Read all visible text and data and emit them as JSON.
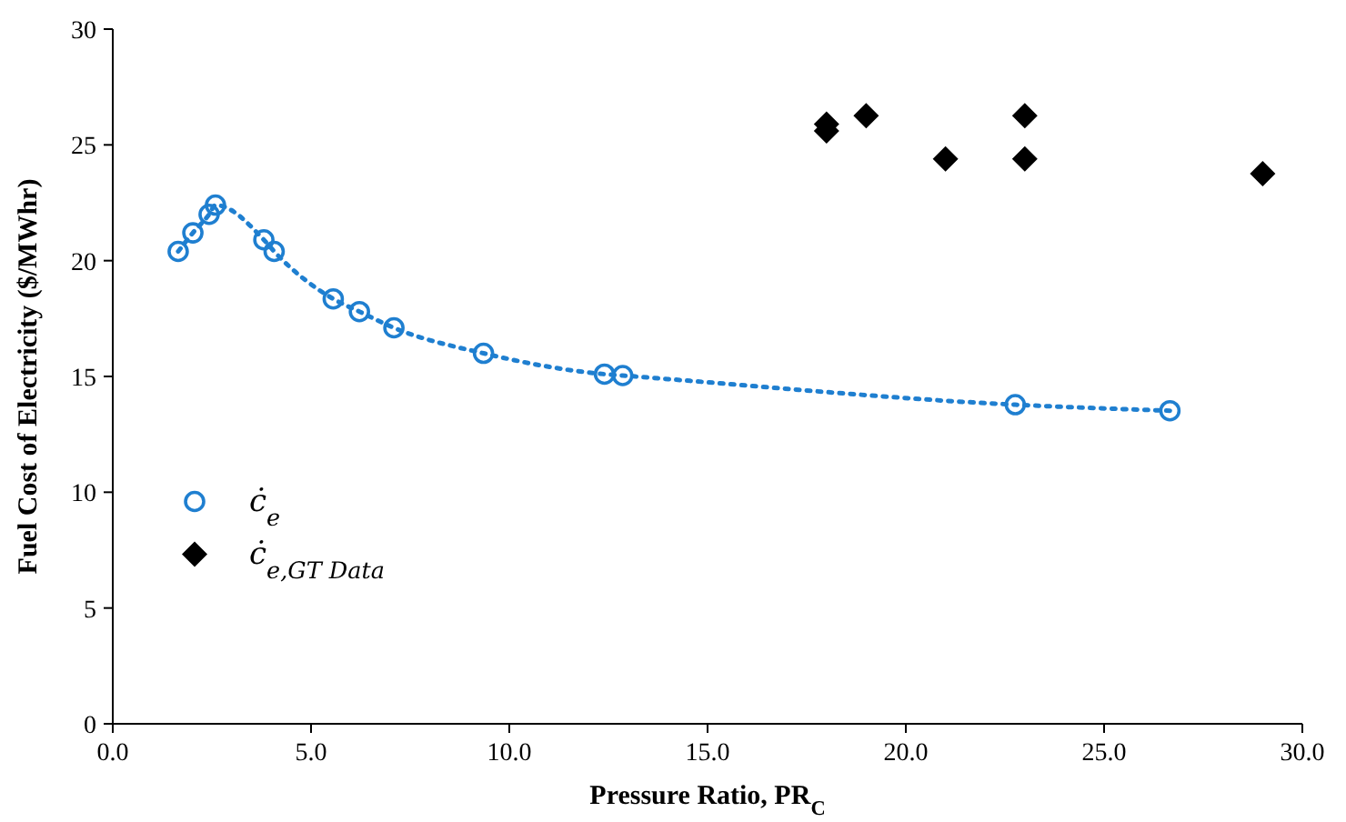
{
  "chart_data": {
    "type": "scatter",
    "xlabel": "Pressure Ratio, PR$_{C}$",
    "ylabel": "Fuel Cost of Electricity ($/MWhr)",
    "xlim": [
      0,
      30
    ],
    "ylim": [
      0,
      30
    ],
    "xticks": [
      {
        "value": 0,
        "label": "0.0"
      },
      {
        "value": 5,
        "label": "5.0"
      },
      {
        "value": 10,
        "label": "10.0"
      },
      {
        "value": 15,
        "label": "15.0"
      },
      {
        "value": 20,
        "label": "20.0"
      },
      {
        "value": 25,
        "label": "25.0"
      },
      {
        "value": 30,
        "label": "30.0"
      }
    ],
    "yticks": [
      0,
      5,
      10,
      15,
      20,
      25,
      30
    ],
    "grid": false,
    "legend": "left",
    "series": [
      {
        "type": "line",
        "color": "#1f7fd0",
        "marker": "none",
        "line_style": "dotted",
        "x": [
          1.65,
          2.02,
          2.43,
          2.59,
          3.81,
          4.07,
          5.56,
          6.22,
          7.09,
          9.35,
          12.4,
          12.86,
          22.76,
          26.66
        ],
        "values": [
          20.4,
          21.2,
          22.0,
          22.4,
          20.9,
          20.4,
          18.35,
          17.8,
          17.1,
          16.0,
          15.1,
          15.04,
          13.78,
          13.52
        ]
      },
      {
        "name": "ċ$_{e}$",
        "color": "#1f7fd0",
        "marker": "circle",
        "x": [
          1.65,
          2.02,
          2.43,
          2.59,
          3.81,
          4.07,
          5.56,
          6.22,
          7.09,
          9.35,
          12.4,
          12.86,
          22.76,
          26.66
        ],
        "values": [
          20.4,
          21.2,
          22.0,
          22.4,
          20.9,
          20.4,
          18.35,
          17.8,
          17.1,
          16.0,
          15.1,
          15.04,
          13.78,
          13.52
        ]
      },
      {
        "name": "ċ$_{e,GT Data}$",
        "color": "#000000",
        "marker": "diamond",
        "x": [
          18.0,
          18.0,
          19.0,
          21.0,
          23.0,
          23.0,
          29.0
        ],
        "values": [
          25.9,
          25.6,
          26.26,
          24.39,
          26.26,
          24.39,
          23.76
        ]
      }
    ]
  }
}
